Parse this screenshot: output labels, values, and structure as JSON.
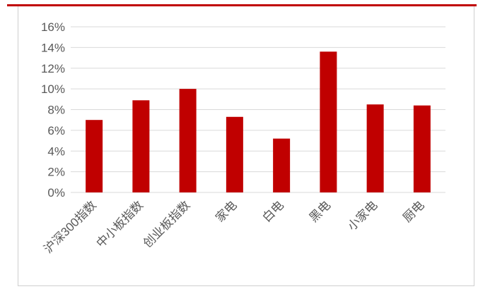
{
  "colors": {
    "bar": "#c00000",
    "grid": "#d9d9d9",
    "text": "#595959",
    "accent_rule": "#c00000"
  },
  "chart_data": {
    "type": "bar",
    "title": "",
    "xlabel": "",
    "ylabel": "",
    "categories": [
      "沪深300指数",
      "中小板指数",
      "创业板指数",
      "家电",
      "白电",
      "黑电",
      "小家电",
      "厨电"
    ],
    "values": [
      7.0,
      8.9,
      10.0,
      7.3,
      5.2,
      13.6,
      8.5,
      8.4
    ],
    "ylim": [
      0,
      16
    ],
    "yticks": [
      0,
      2,
      4,
      6,
      8,
      10,
      12,
      14,
      16
    ],
    "ytick_labels": [
      "0%",
      "2%",
      "4%",
      "6%",
      "8%",
      "10%",
      "12%",
      "14%",
      "16%"
    ],
    "value_unit": "%",
    "grid": true,
    "legend": "none"
  }
}
